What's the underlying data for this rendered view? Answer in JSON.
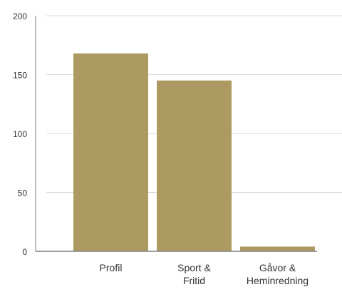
{
  "chart_data": {
    "type": "bar",
    "categories": [
      "Profil",
      "Sport & Fritid",
      "Gåvor & Heminredning"
    ],
    "category_label_lines": [
      [
        "Profil"
      ],
      [
        "Sport &",
        "Fritid"
      ],
      [
        "Gåvor &",
        "Heminredning"
      ]
    ],
    "values": [
      168,
      145,
      4
    ],
    "ylim": [
      0,
      200
    ],
    "yticks": [
      0,
      50,
      100,
      150,
      200
    ],
    "title": "",
    "xlabel": "",
    "ylabel": "",
    "grid": true,
    "colors": {
      "bar": "#AD9A63",
      "grid": "#D9D9D9",
      "axis": "#7F7F7F",
      "text": "#333333"
    }
  }
}
